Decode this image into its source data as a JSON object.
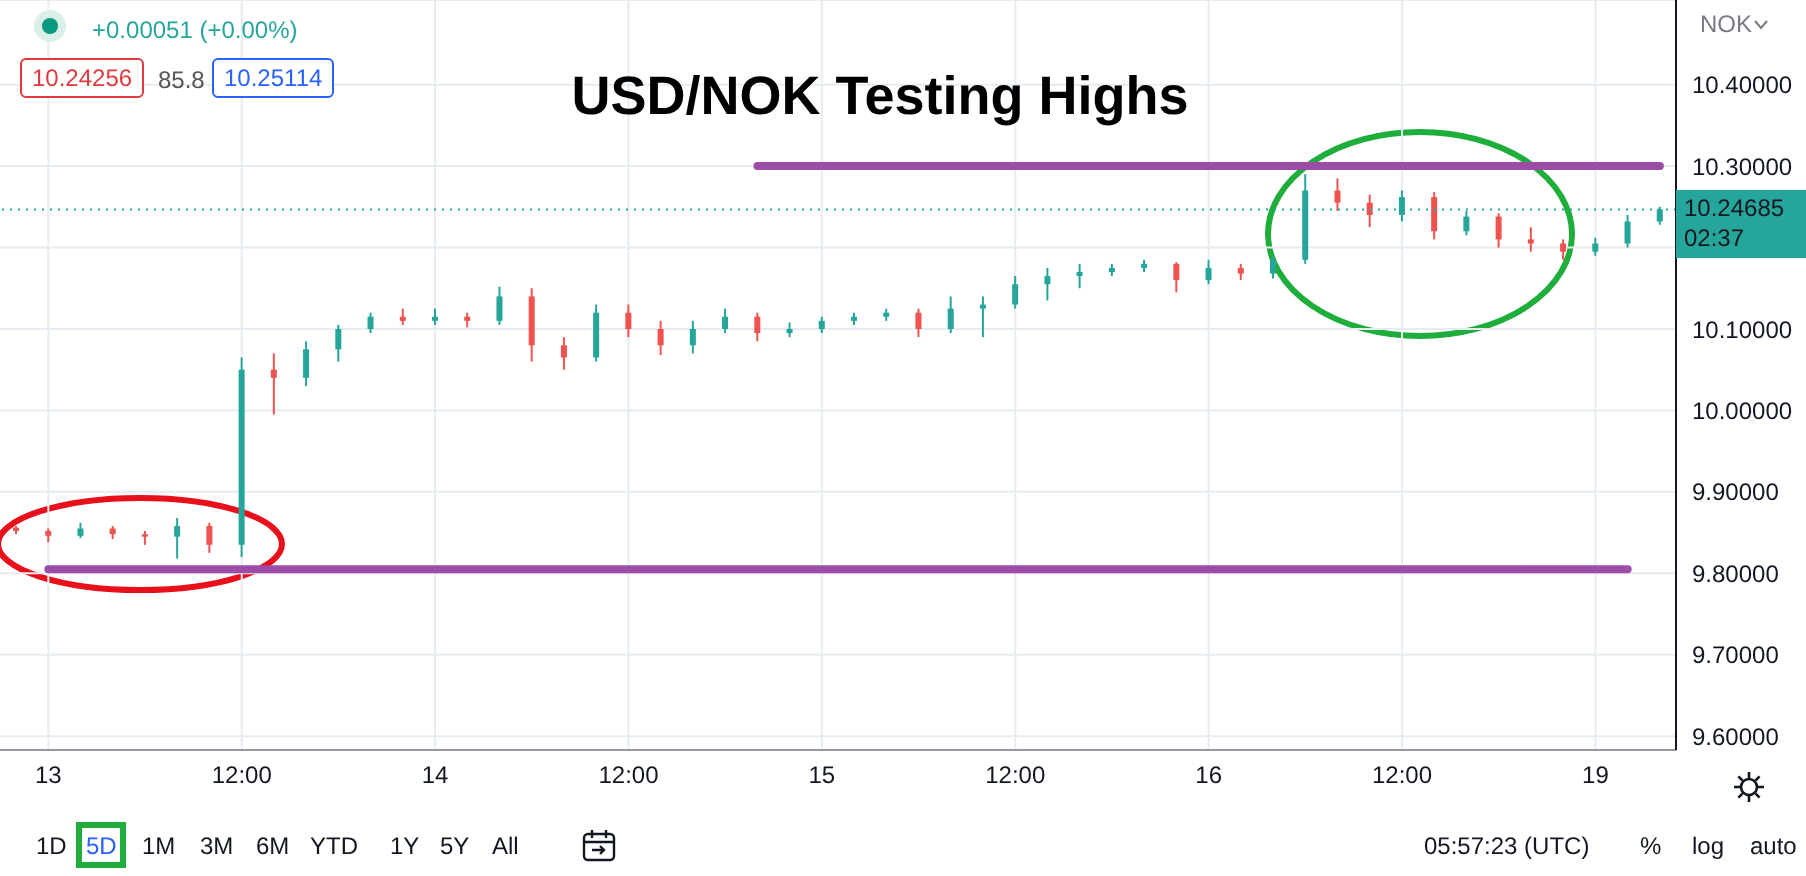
{
  "chart_data": {
    "type": "candlestick",
    "title": "USD/NOK Testing Highs",
    "categories": [
      null,
      "13",
      null,
      null,
      null,
      null,
      null,
      "12:00",
      null,
      null,
      null,
      null,
      null,
      "14",
      null,
      null,
      null,
      null,
      null,
      "12:00",
      null,
      null,
      null,
      null,
      null,
      "15",
      null,
      null,
      null,
      null,
      null,
      "12:00",
      null,
      null,
      null,
      null,
      null,
      "16",
      null,
      null,
      null,
      null,
      null,
      "12:00",
      null,
      null,
      null,
      null,
      null,
      "19",
      null,
      null
    ],
    "ohlc": [
      [
        9.856,
        9.858,
        9.848,
        9.852
      ],
      [
        9.852,
        9.855,
        9.838,
        9.846
      ],
      [
        9.846,
        9.862,
        9.843,
        9.855
      ],
      [
        9.855,
        9.858,
        9.842,
        9.848
      ],
      [
        9.848,
        9.852,
        9.835,
        9.845
      ],
      [
        9.845,
        9.868,
        9.818,
        9.858
      ],
      [
        9.858,
        9.862,
        9.825,
        9.835
      ],
      [
        9.835,
        10.065,
        9.82,
        10.05
      ],
      [
        10.05,
        10.07,
        9.995,
        10.04
      ],
      [
        10.04,
        10.085,
        10.03,
        10.075
      ],
      [
        10.075,
        10.105,
        10.06,
        10.1
      ],
      [
        10.1,
        10.12,
        10.095,
        10.115
      ],
      [
        10.115,
        10.125,
        10.105,
        10.11
      ],
      [
        10.11,
        10.125,
        10.105,
        10.115
      ],
      [
        10.115,
        10.12,
        10.102,
        10.11
      ],
      [
        10.11,
        10.152,
        10.105,
        10.14
      ],
      [
        10.14,
        10.15,
        10.06,
        10.08
      ],
      [
        10.08,
        10.09,
        10.05,
        10.065
      ],
      [
        10.065,
        10.13,
        10.06,
        10.12
      ],
      [
        10.12,
        10.13,
        10.09,
        10.1
      ],
      [
        10.1,
        10.11,
        10.068,
        10.08
      ],
      [
        10.08,
        10.11,
        10.07,
        10.1
      ],
      [
        10.1,
        10.125,
        10.095,
        10.115
      ],
      [
        10.115,
        10.12,
        10.085,
        10.095
      ],
      [
        10.095,
        10.108,
        10.09,
        10.1
      ],
      [
        10.1,
        10.115,
        10.095,
        10.11
      ],
      [
        10.11,
        10.12,
        10.105,
        10.115
      ],
      [
        10.115,
        10.125,
        10.11,
        10.12
      ],
      [
        10.12,
        10.125,
        10.09,
        10.1
      ],
      [
        10.1,
        10.14,
        10.095,
        10.125
      ],
      [
        10.125,
        10.14,
        10.09,
        10.13
      ],
      [
        10.13,
        10.165,
        10.125,
        10.155
      ],
      [
        10.155,
        10.175,
        10.135,
        10.165
      ],
      [
        10.165,
        10.18,
        10.15,
        10.17
      ],
      [
        10.17,
        10.18,
        10.165,
        10.175
      ],
      [
        10.175,
        10.185,
        10.17,
        10.18
      ],
      [
        10.18,
        10.182,
        10.145,
        10.16
      ],
      [
        10.16,
        10.185,
        10.155,
        10.175
      ],
      [
        10.175,
        10.18,
        10.16,
        10.168
      ],
      [
        10.168,
        10.19,
        10.162,
        10.185
      ],
      [
        10.185,
        10.29,
        10.18,
        10.27
      ],
      [
        10.27,
        10.285,
        10.245,
        10.255
      ],
      [
        10.255,
        10.265,
        10.225,
        10.24
      ],
      [
        10.24,
        10.27,
        10.232,
        10.262
      ],
      [
        10.262,
        10.268,
        10.21,
        10.22
      ],
      [
        10.22,
        10.245,
        10.215,
        10.238
      ],
      [
        10.238,
        10.242,
        10.2,
        10.21
      ],
      [
        10.21,
        10.225,
        10.195,
        10.205
      ],
      [
        10.205,
        10.21,
        10.185,
        10.195
      ],
      [
        10.195,
        10.212,
        10.19,
        10.205
      ],
      [
        10.205,
        10.24,
        10.2,
        10.232
      ],
      [
        10.232,
        10.25,
        10.228,
        10.247
      ]
    ],
    "colors": [
      "#ef5350",
      "#ef5350",
      "#26a69a",
      "#ef5350",
      "#ef5350",
      "#26a69a",
      "#ef5350",
      "#26a69a",
      "#ef5350",
      "#26a69a",
      "#26a69a",
      "#26a69a",
      "#ef5350",
      "#26a69a",
      "#ef5350",
      "#26a69a",
      "#ef5350",
      "#ef5350",
      "#26a69a",
      "#ef5350",
      "#ef5350",
      "#26a69a",
      "#26a69a",
      "#ef5350",
      "#26a69a",
      "#26a69a",
      "#26a69a",
      "#26a69a",
      "#ef5350",
      "#26a69a",
      "#26a69a",
      "#26a69a",
      "#26a69a",
      "#26a69a",
      "#26a69a",
      "#26a69a",
      "#ef5350",
      "#26a69a",
      "#ef5350",
      "#26a69a",
      "#26a69a",
      "#ef5350",
      "#ef5350",
      "#26a69a",
      "#ef5350",
      "#26a69a",
      "#ef5350",
      "#ef5350",
      "#ef5350",
      "#26a69a",
      "#26a69a",
      "#26a69a"
    ],
    "series": [
      {
        "type": "line",
        "color": "#9c4ea6",
        "values": [
          null,
          null,
          null,
          null,
          null,
          null,
          null,
          null,
          null,
          null,
          null,
          null,
          null,
          null,
          null,
          null,
          null,
          null,
          null,
          null,
          null,
          null,
          null,
          10.3,
          10.3,
          10.3,
          10.3,
          10.3,
          10.3,
          10.3,
          10.3,
          10.3,
          10.3,
          10.3,
          10.3,
          10.3,
          10.3,
          10.3,
          10.3,
          10.3,
          10.3,
          10.3,
          10.3,
          10.3,
          10.3,
          10.3,
          10.3,
          10.3,
          10.3,
          10.3,
          10.3,
          10.3
        ]
      },
      {
        "type": "line",
        "color": "#9c4ea6",
        "values": [
          null,
          9.805,
          9.805,
          9.805,
          9.805,
          9.805,
          9.805,
          9.805,
          9.805,
          9.805,
          9.805,
          9.805,
          9.805,
          9.805,
          9.805,
          9.805,
          9.805,
          9.805,
          9.805,
          9.805,
          9.805,
          9.805,
          9.805,
          9.805,
          9.805,
          9.805,
          9.805,
          9.805,
          9.805,
          9.805,
          9.805,
          9.805,
          9.805,
          9.805,
          9.805,
          9.805,
          9.805,
          9.805,
          9.805,
          9.805,
          9.805,
          9.805,
          9.805,
          9.805,
          9.805,
          9.805,
          9.805,
          9.805,
          9.805,
          9.805,
          9.805,
          null
        ]
      }
    ],
    "ylim": [
      9.583,
      10.504
    ],
    "yticks": [
      {
        "value": 9.6,
        "label": "9.60000"
      },
      {
        "value": 9.7,
        "label": "9.70000"
      },
      {
        "value": 9.8,
        "label": "9.80000"
      },
      {
        "value": 9.9,
        "label": "9.90000"
      },
      {
        "value": 10,
        "label": "10.00000"
      },
      {
        "value": 10.1,
        "label": "10.10000"
      },
      {
        "value": 10.2,
        "label": null
      },
      {
        "value": 10.3,
        "label": "10.30000"
      },
      {
        "value": 10.4,
        "label": "10.40000"
      }
    ],
    "ref_lines": [
      {
        "axis": "y",
        "value": 10.24685,
        "label": "10.24685\n02:37",
        "color": "#26a69a",
        "line_style": "dotted"
      }
    ],
    "grid": true,
    "annotations": [
      "+0.00051 (+0.00%)",
      "10.24256",
      "85.8",
      "10.25114",
      "NOK",
      "1D",
      "5D",
      "1M",
      "3M",
      "6M",
      "YTD",
      "1Y",
      "5Y",
      "All",
      "05:57:23 (UTC)",
      "%",
      "log",
      "auto"
    ]
  }
}
